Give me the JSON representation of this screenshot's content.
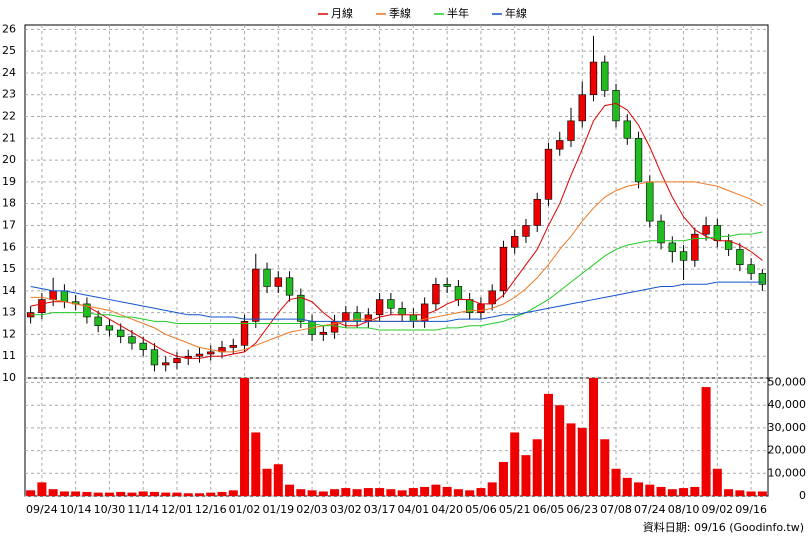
{
  "chart_data": [
    {
      "type": "candlestick",
      "categories": [
        null,
        "09/24",
        null,
        null,
        "10/14",
        null,
        null,
        "10/30",
        null,
        null,
        "11/14",
        null,
        null,
        "12/01",
        null,
        null,
        "12/16",
        null,
        null,
        "01/02",
        null,
        null,
        "01/19",
        null,
        null,
        "02/03",
        null,
        null,
        "03/02",
        null,
        null,
        "03/17",
        null,
        null,
        "04/01",
        null,
        null,
        "04/20",
        null,
        null,
        "05/06",
        null,
        null,
        "05/21",
        null,
        null,
        "06/05",
        null,
        null,
        "06/23",
        null,
        null,
        "07/08",
        null,
        null,
        "07/24",
        null,
        null,
        "08/10",
        null,
        null,
        "09/02",
        null,
        null,
        "09/16",
        null
      ],
      "open": [
        12.8,
        13.0,
        13.6,
        14.0,
        13.5,
        13.4,
        12.8,
        12.4,
        12.2,
        11.9,
        11.6,
        11.3,
        10.6,
        10.7,
        10.9,
        11.0,
        11.1,
        11.2,
        11.4,
        11.5,
        12.6,
        15.0,
        14.2,
        14.6,
        13.8,
        12.6,
        12.0,
        12.1,
        12.6,
        13.0,
        12.6,
        12.9,
        13.6,
        13.2,
        12.9,
        12.6,
        13.4,
        14.3,
        14.2,
        13.6,
        13.0,
        13.4,
        14.0,
        16.0,
        16.5,
        17.0,
        18.2,
        20.5,
        20.9,
        21.8,
        23.0,
        24.5,
        23.2,
        21.8,
        21.0,
        19.0,
        17.2,
        16.2,
        15.8,
        15.4,
        16.6,
        17.0,
        16.3,
        15.9,
        15.2,
        14.8
      ],
      "high": [
        13.3,
        13.9,
        14.6,
        14.3,
        13.8,
        13.7,
        13.1,
        12.7,
        12.5,
        12.2,
        11.9,
        11.6,
        11.0,
        11.2,
        11.3,
        11.4,
        11.5,
        11.7,
        11.8,
        12.9,
        15.7,
        15.3,
        14.9,
        14.9,
        14.1,
        12.9,
        12.4,
        12.9,
        13.3,
        13.3,
        13.2,
        13.9,
        13.9,
        13.5,
        13.2,
        13.7,
        14.6,
        14.6,
        14.5,
        13.9,
        13.7,
        14.3,
        16.3,
        16.8,
        17.3,
        18.5,
        20.8,
        21.3,
        22.4,
        23.6,
        25.7,
        24.8,
        23.5,
        22.1,
        21.3,
        19.3,
        17.5,
        16.5,
        16.1,
        16.9,
        17.4,
        17.3,
        16.6,
        16.2,
        15.5,
        15.0
      ],
      "low": [
        12.5,
        12.7,
        13.3,
        13.2,
        13.1,
        12.5,
        12.1,
        11.9,
        11.6,
        11.3,
        11.0,
        10.3,
        10.3,
        10.4,
        10.6,
        10.7,
        10.8,
        10.9,
        11.1,
        11.2,
        12.3,
        13.9,
        13.9,
        13.5,
        12.3,
        11.7,
        11.7,
        11.8,
        12.3,
        12.3,
        12.3,
        12.6,
        12.9,
        12.6,
        12.3,
        12.3,
        13.1,
        13.9,
        13.3,
        12.7,
        12.7,
        13.1,
        13.7,
        15.7,
        16.2,
        16.7,
        17.9,
        20.2,
        20.6,
        21.5,
        22.7,
        22.9,
        21.5,
        20.7,
        18.7,
        16.9,
        15.9,
        15.3,
        14.5,
        15.1,
        16.3,
        16.0,
        15.6,
        14.9,
        14.5,
        14.0
      ],
      "close": [
        13.0,
        13.6,
        14.0,
        13.5,
        13.4,
        12.8,
        12.4,
        12.2,
        11.9,
        11.6,
        11.3,
        10.6,
        10.7,
        10.9,
        11.0,
        11.1,
        11.2,
        11.4,
        11.5,
        12.6,
        15.0,
        14.2,
        14.6,
        13.8,
        12.6,
        12.0,
        12.1,
        12.6,
        13.0,
        12.6,
        12.9,
        13.6,
        13.2,
        12.9,
        12.6,
        13.4,
        14.3,
        14.2,
        13.6,
        13.0,
        13.4,
        14.0,
        16.0,
        16.5,
        17.0,
        18.2,
        20.5,
        20.9,
        21.8,
        23.0,
        24.5,
        23.2,
        21.8,
        21.0,
        19.0,
        17.2,
        16.2,
        15.8,
        15.4,
        16.6,
        17.0,
        16.3,
        15.9,
        15.2,
        14.8,
        14.3
      ],
      "up_color": "#ee0000",
      "down_color": "#22bb22",
      "series": [
        {
          "name": "月線",
          "color": "#dd0000",
          "values": [
            13.3,
            13.4,
            13.5,
            13.5,
            13.4,
            13.3,
            13.0,
            12.7,
            12.4,
            12.1,
            11.8,
            11.5,
            11.2,
            11.0,
            10.9,
            10.9,
            11.0,
            11.0,
            11.1,
            11.2,
            11.6,
            12.3,
            13.0,
            13.6,
            13.7,
            13.5,
            13.0,
            12.6,
            12.4,
            12.4,
            12.6,
            12.8,
            12.9,
            12.9,
            12.9,
            12.9,
            13.1,
            13.4,
            13.6,
            13.6,
            13.4,
            13.4,
            13.8,
            14.5,
            15.2,
            15.9,
            17.0,
            18.0,
            19.3,
            20.5,
            21.8,
            22.5,
            22.6,
            22.3,
            21.6,
            20.6,
            19.4,
            18.3,
            17.4,
            16.8,
            16.5,
            16.3,
            16.3,
            16.1,
            15.8,
            15.4
          ]
        },
        {
          "name": "季線",
          "color": "#ee7722",
          "values": [
            13.7,
            13.7,
            13.6,
            13.5,
            13.4,
            13.3,
            13.2,
            13.1,
            12.9,
            12.7,
            12.5,
            12.3,
            12.0,
            11.8,
            11.6,
            11.4,
            11.3,
            11.2,
            11.2,
            11.3,
            11.5,
            11.7,
            11.9,
            12.1,
            12.2,
            12.3,
            12.4,
            12.5,
            12.6,
            12.7,
            12.7,
            12.6,
            12.6,
            12.6,
            12.6,
            12.7,
            12.8,
            12.9,
            13.0,
            13.1,
            13.1,
            13.2,
            13.4,
            13.7,
            14.1,
            14.6,
            15.2,
            15.9,
            16.5,
            17.2,
            17.8,
            18.3,
            18.6,
            18.8,
            18.9,
            19.0,
            19.0,
            19.0,
            19.0,
            19.0,
            18.9,
            18.8,
            18.6,
            18.4,
            18.2,
            17.9
          ]
        },
        {
          "name": "半年",
          "color": "#22cc22",
          "values": [
            12.9,
            12.9,
            13.0,
            13.0,
            13.0,
            13.0,
            12.9,
            12.9,
            12.8,
            12.8,
            12.7,
            12.6,
            12.6,
            12.5,
            12.5,
            12.5,
            12.5,
            12.5,
            12.5,
            12.5,
            12.5,
            12.5,
            12.5,
            12.5,
            12.5,
            12.5,
            12.4,
            12.4,
            12.3,
            12.3,
            12.3,
            12.2,
            12.2,
            12.2,
            12.2,
            12.2,
            12.2,
            12.3,
            12.3,
            12.4,
            12.4,
            12.5,
            12.6,
            12.8,
            13.0,
            13.3,
            13.6,
            14.0,
            14.4,
            14.8,
            15.2,
            15.6,
            15.9,
            16.1,
            16.2,
            16.3,
            16.3,
            16.3,
            16.3,
            16.4,
            16.4,
            16.5,
            16.5,
            16.6,
            16.6,
            16.7
          ]
        },
        {
          "name": "年線",
          "color": "#1155cc",
          "values": [
            14.2,
            14.1,
            14.0,
            14.0,
            13.9,
            13.8,
            13.7,
            13.6,
            13.5,
            13.4,
            13.3,
            13.2,
            13.1,
            13.0,
            12.9,
            12.9,
            12.8,
            12.8,
            12.8,
            12.7,
            12.7,
            12.7,
            12.7,
            12.7,
            12.7,
            12.6,
            12.6,
            12.6,
            12.6,
            12.6,
            12.6,
            12.6,
            12.6,
            12.6,
            12.6,
            12.6,
            12.6,
            12.6,
            12.7,
            12.7,
            12.7,
            12.8,
            12.9,
            12.9,
            13.0,
            13.1,
            13.2,
            13.3,
            13.4,
            13.5,
            13.6,
            13.7,
            13.8,
            13.9,
            14.0,
            14.1,
            14.2,
            14.2,
            14.3,
            14.3,
            14.3,
            14.4,
            14.4,
            14.4,
            14.4,
            14.4
          ]
        }
      ],
      "ylim": [
        10,
        26.2
      ],
      "yticks": [
        10,
        11,
        12,
        13,
        14,
        15,
        16,
        17,
        18,
        19,
        20,
        21,
        22,
        23,
        24,
        25,
        26
      ],
      "grid": true
    },
    {
      "type": "bar",
      "values": [
        2500,
        6000,
        3000,
        2000,
        2000,
        1800,
        1500,
        1500,
        1800,
        1500,
        2000,
        1800,
        1500,
        1500,
        1200,
        1200,
        1500,
        1800,
        2500,
        52000,
        28000,
        12000,
        14000,
        5000,
        3000,
        2500,
        2000,
        3000,
        3500,
        3000,
        3500,
        3500,
        3000,
        2500,
        3500,
        4000,
        5000,
        4000,
        3000,
        2500,
        3500,
        6000,
        15000,
        28000,
        18000,
        25000,
        45000,
        40000,
        32000,
        30000,
        52000,
        25000,
        12000,
        8000,
        6000,
        5000,
        4000,
        3000,
        3500,
        4000,
        48000,
        12000,
        3000,
        2500,
        2000,
        2000
      ],
      "color": "#ee0000",
      "ylim": [
        0,
        52000
      ],
      "yticks": [
        0,
        {
          "value": 10000,
          "label": "10,000"
        },
        {
          "value": 20000,
          "label": "20,000"
        },
        {
          "value": 30000,
          "label": "30,000"
        },
        {
          "value": 40000,
          "label": "40,000"
        },
        {
          "value": 50000,
          "label": "50,000"
        }
      ],
      "grid": true
    }
  ],
  "footer": "資料日期: 09/16 (Goodinfo.tw)"
}
